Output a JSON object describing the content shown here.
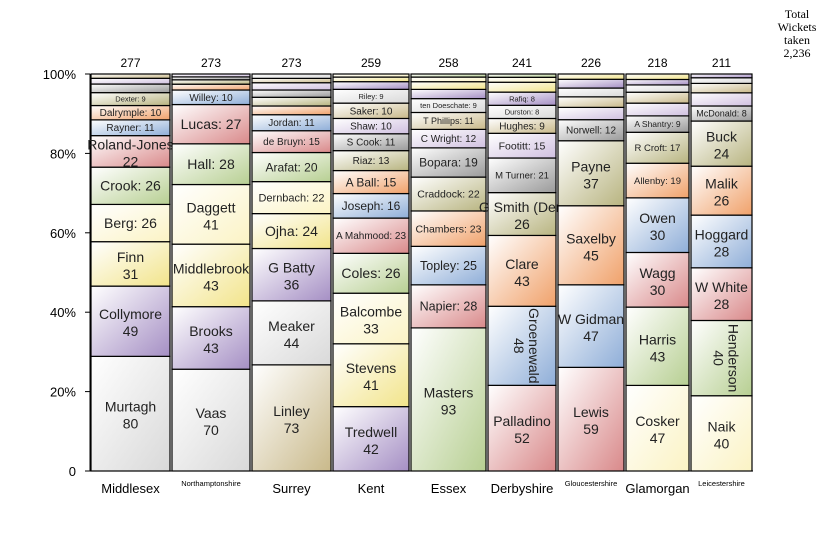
{
  "chart_data": {
    "type": "bar",
    "stacked_percent": true,
    "title": "",
    "total_label": "Total Wickets taken",
    "total_value": "2,236",
    "ylim": [
      0,
      100
    ],
    "yticks": [
      "0",
      "20%",
      "40%",
      "60%",
      "80%",
      "100%"
    ],
    "categories": [
      "Middlesex",
      "Northamptonshire",
      "Surrey",
      "Kent",
      "Essex",
      "Derbyshire",
      "Gloucestershire",
      "Glamorgan",
      "Leicestershire"
    ],
    "totals": [
      277,
      273,
      273,
      259,
      258,
      241,
      226,
      218,
      211
    ],
    "bars": [
      {
        "segments": [
          [
            "Murtagh",
            80
          ],
          [
            "Collymore",
            49
          ],
          [
            "Finn",
            31
          ],
          [
            "Berg",
            26
          ],
          [
            "Crook",
            26
          ],
          [
            "Roland-Jones",
            22
          ],
          [
            "Rayner",
            11
          ],
          [
            "Dalrymple",
            10
          ],
          [
            "Dexter",
            9
          ],
          [
            "",
            6
          ],
          [
            "",
            4
          ],
          [
            "",
            3
          ]
        ]
      },
      {
        "segments": [
          [
            "Vaas",
            70
          ],
          [
            "Brooks",
            43
          ],
          [
            "Middlebrook",
            43
          ],
          [
            "Daggett",
            41
          ],
          [
            "Hall",
            28
          ],
          [
            "Lucas",
            27
          ],
          [
            "Willey",
            10
          ],
          [
            "",
            4
          ],
          [
            "",
            3
          ],
          [
            "",
            2
          ],
          [
            "",
            2
          ]
        ]
      },
      {
        "segments": [
          [
            "Linley",
            73
          ],
          [
            "Meaker",
            44
          ],
          [
            "G Batty",
            36
          ],
          [
            "Ojha",
            24
          ],
          [
            "Dernbach",
            22
          ],
          [
            "Arafat",
            20
          ],
          [
            "de Bruyn",
            15
          ],
          [
            "Jordan",
            11
          ],
          [
            "",
            6
          ],
          [
            "",
            6
          ],
          [
            "",
            5
          ],
          [
            "",
            5
          ],
          [
            "",
            3
          ],
          [
            "",
            3
          ]
        ]
      },
      {
        "segments": [
          [
            "Tredwell",
            42
          ],
          [
            "Stevens",
            41
          ],
          [
            "Balcombe",
            33
          ],
          [
            "Coles",
            26
          ],
          [
            "A Mahmood",
            23
          ],
          [
            "Joseph",
            16
          ],
          [
            "A Ball",
            15
          ],
          [
            "Riaz",
            13
          ],
          [
            "S Cook",
            11
          ],
          [
            "Shaw",
            10
          ],
          [
            "Saker",
            10
          ],
          [
            "Riley",
            9
          ],
          [
            "",
            5
          ],
          [
            "",
            3
          ],
          [
            "",
            2
          ]
        ]
      },
      {
        "segments": [
          [
            "Masters",
            93
          ],
          [
            "Napier",
            28
          ],
          [
            "Topley",
            25
          ],
          [
            "Chambers",
            23
          ],
          [
            "Craddock",
            22
          ],
          [
            "Bopara",
            19
          ],
          [
            "C Wright",
            12
          ],
          [
            "T Phillips",
            11
          ],
          [
            "ten Doeschate",
            9
          ],
          [
            "",
            6
          ],
          [
            "",
            5
          ],
          [
            "",
            3
          ],
          [
            "",
            2
          ]
        ]
      },
      {
        "segments": [
          [
            "Palladino",
            52
          ],
          [
            "Groenewald",
            48
          ],
          [
            "Clare",
            43
          ],
          [
            "G Smith (Der)",
            26
          ],
          [
            "M Turner",
            21
          ],
          [
            "Footitt",
            15
          ],
          [
            "Hughes",
            9
          ],
          [
            "Durston",
            8
          ],
          [
            "Rafiq",
            8
          ],
          [
            "",
            6
          ],
          [
            "",
            3
          ],
          [
            "",
            2
          ]
        ]
      },
      {
        "segments": [
          [
            "Lewis",
            59
          ],
          [
            "W Gidman",
            47
          ],
          [
            "Saxelby",
            45
          ],
          [
            "Payne",
            37
          ],
          [
            "Norwell",
            12
          ],
          [
            "",
            7
          ],
          [
            "",
            6
          ],
          [
            "",
            5
          ],
          [
            "",
            5
          ],
          [
            "",
            3
          ]
        ]
      },
      {
        "segments": [
          [
            "Cosker",
            47
          ],
          [
            "Harris",
            43
          ],
          [
            "Wagg",
            30
          ],
          [
            "Owen",
            30
          ],
          [
            "Allenby",
            19
          ],
          [
            "R Croft",
            17
          ],
          [
            "A Shantry",
            9
          ],
          [
            "",
            7
          ],
          [
            "",
            6
          ],
          [
            "",
            4
          ],
          [
            "",
            3
          ],
          [
            "",
            3
          ]
        ]
      },
      {
        "segments": [
          [
            "Naik",
            40
          ],
          [
            "Henderson",
            40
          ],
          [
            "W White",
            28
          ],
          [
            "Hoggard",
            28
          ],
          [
            "Malik",
            26
          ],
          [
            "Buck",
            24
          ],
          [
            "McDonald",
            8
          ],
          [
            "",
            7
          ],
          [
            "",
            5
          ],
          [
            "",
            3
          ],
          [
            "",
            2
          ]
        ]
      }
    ],
    "vertical_labels": [
      "Groenewald",
      "Henderson"
    ],
    "palette": [
      "#d9d9d9",
      "#a58fc4",
      "#f2e48a",
      "#fbf3c4",
      "#b7cf92",
      "#d9898a",
      "#8faed8",
      "#f0a16a",
      "#b8b480",
      "#9a9a9a",
      "#d0c0e0",
      "#c9b98a"
    ]
  }
}
